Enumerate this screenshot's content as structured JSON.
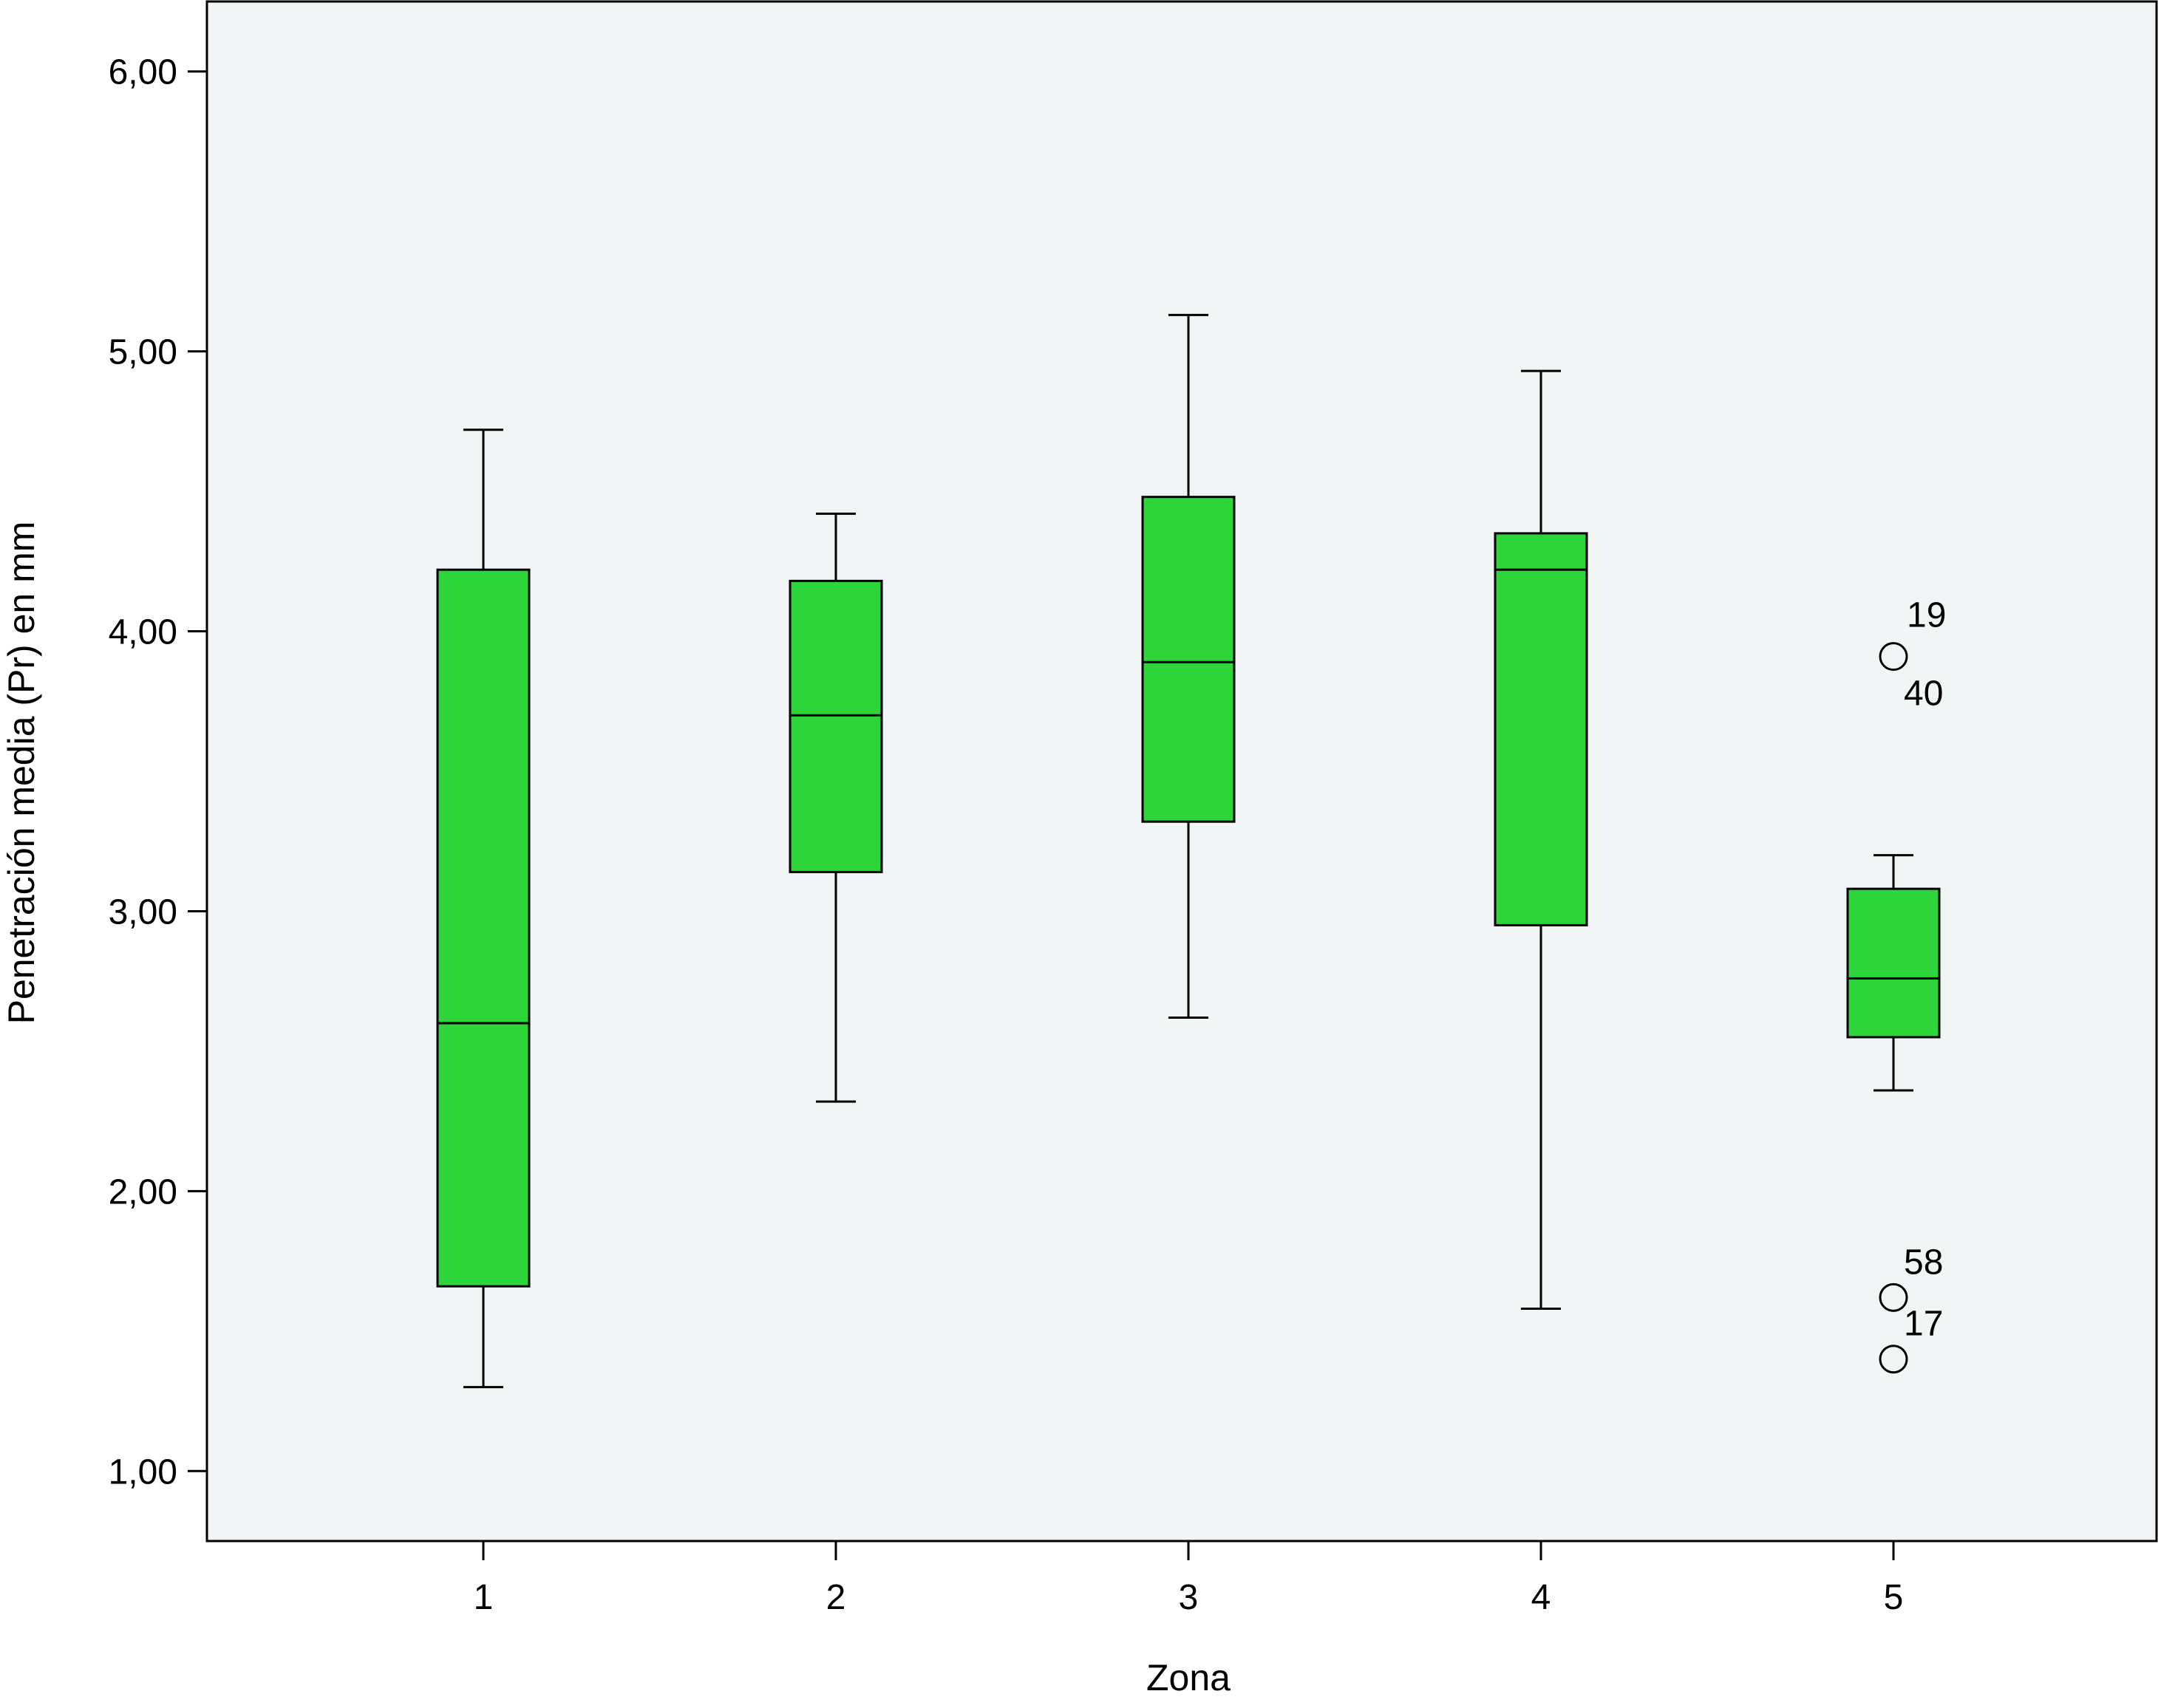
{
  "chart_data": {
    "type": "boxplot",
    "title": "",
    "xlabel": "Zona",
    "ylabel": "Penetración media (Pr) en mm",
    "categories": [
      "1",
      "2",
      "3",
      "4",
      "5"
    ],
    "ylim": [
      0.75,
      6.25
    ],
    "yticks": [
      1.0,
      2.0,
      3.0,
      4.0,
      5.0,
      6.0
    ],
    "ytick_labels": [
      "1,00",
      "2,00",
      "3,00",
      "4,00",
      "5,00",
      "6,00"
    ],
    "grid": false,
    "legend": "none",
    "boxes": [
      {
        "category": "1",
        "whisker_low": 1.3,
        "q1": 1.66,
        "median": 2.6,
        "q3": 4.22,
        "whisker_high": 4.72
      },
      {
        "category": "2",
        "whisker_low": 2.32,
        "q1": 3.14,
        "median": 3.7,
        "q3": 4.18,
        "whisker_high": 4.42
      },
      {
        "category": "3",
        "whisker_low": 2.62,
        "q1": 3.32,
        "median": 3.89,
        "q3": 4.48,
        "whisker_high": 5.13
      },
      {
        "category": "4",
        "whisker_low": 1.58,
        "q1": 2.95,
        "median": 4.22,
        "q3": 4.35,
        "whisker_high": 4.93
      },
      {
        "category": "5",
        "whisker_low": 2.36,
        "q1": 2.55,
        "median": 2.76,
        "q3": 3.08,
        "whisker_high": 3.2
      }
    ],
    "outliers": [
      {
        "category": "5",
        "value": 3.91,
        "labels": [
          "19",
          "40"
        ]
      },
      {
        "category": "5",
        "value": 1.62,
        "labels": [
          "58"
        ]
      },
      {
        "category": "5",
        "value": 1.4,
        "labels": [
          "17"
        ]
      }
    ],
    "colors": {
      "box_fill": "#2dd43a",
      "plot_background": "#f2f5f6",
      "stroke": "#000000"
    }
  }
}
